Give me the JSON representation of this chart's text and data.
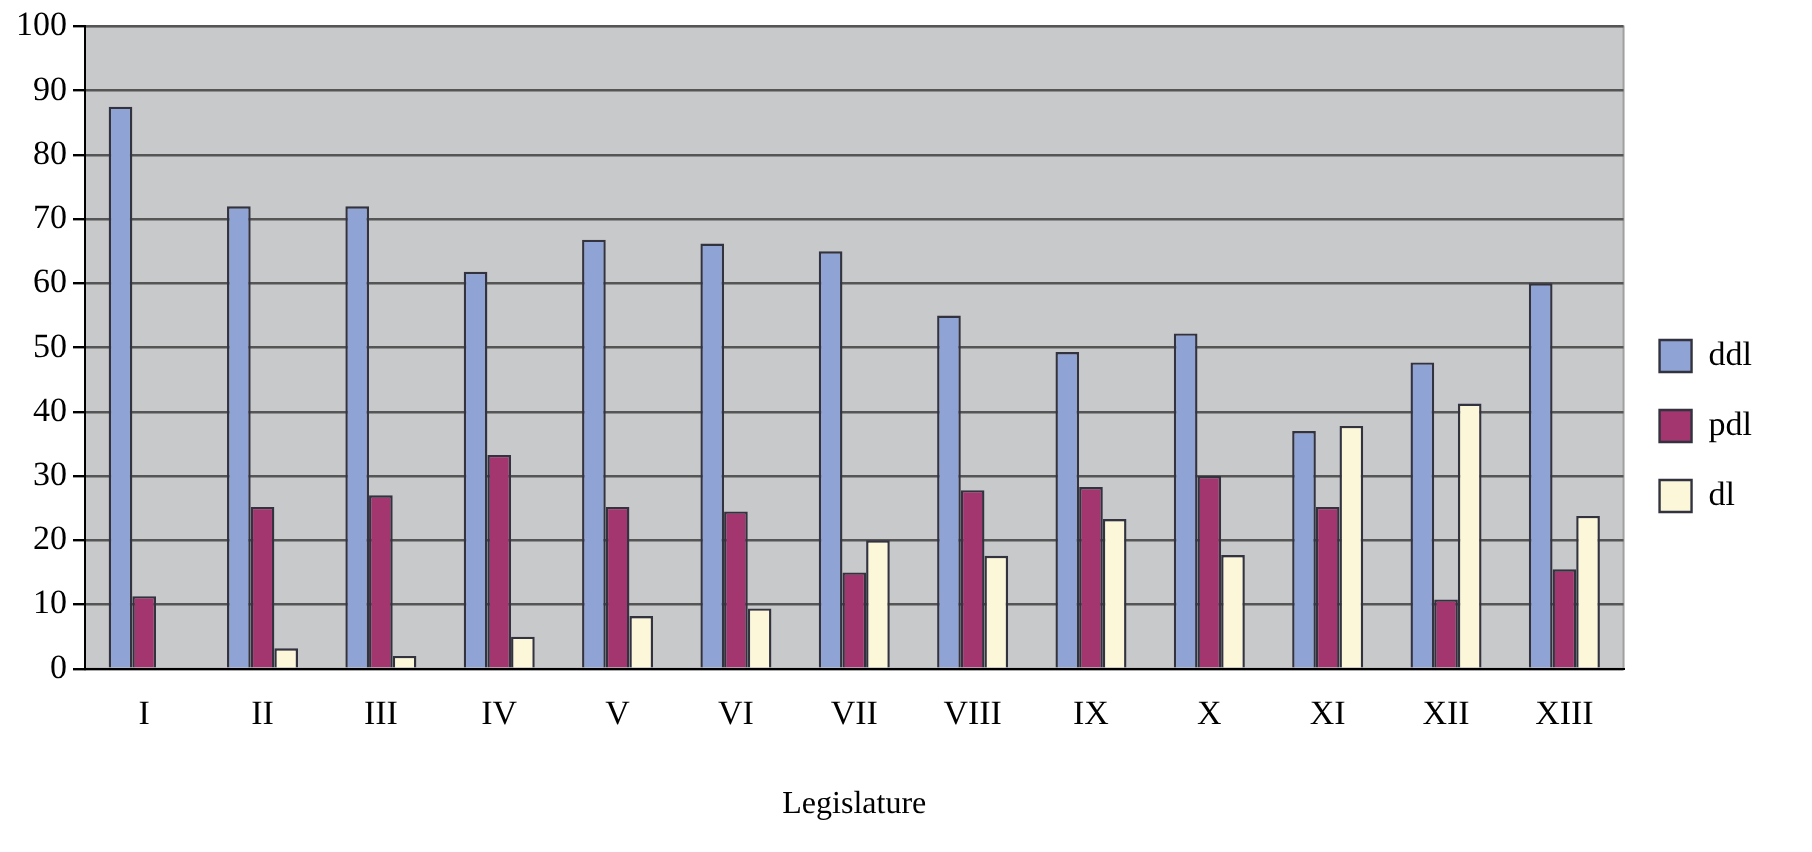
{
  "chart_data": {
    "type": "bar",
    "xlabel": "Legislature",
    "categories": [
      "I",
      "II",
      "III",
      "IV",
      "V",
      "VI",
      "VII",
      "VIII",
      "IX",
      "X",
      "XI",
      "XII",
      "XIII"
    ],
    "series": [
      {
        "name": "ddl",
        "color": "#8fa3d4",
        "values": [
          87.5,
          72,
          72,
          61.8,
          66.8,
          66.2,
          65,
          55,
          49.3,
          52.2,
          37,
          47.7,
          60
        ]
      },
      {
        "name": "pdl",
        "color": "#a3356f",
        "values": [
          11.3,
          25.2,
          27,
          33.3,
          25.2,
          24.5,
          15,
          27.8,
          28.3,
          30,
          25.2,
          10.8,
          15.5
        ]
      },
      {
        "name": "dl",
        "color": "#fbf7d8",
        "values": [
          0,
          3.2,
          2,
          5,
          8.2,
          9.4,
          20,
          17.6,
          23.3,
          17.7,
          37.8,
          41.3,
          23.8
        ]
      }
    ],
    "ylim": [
      0,
      100
    ],
    "yticks": [
      0,
      10,
      20,
      30,
      40,
      50,
      60,
      70,
      80,
      90,
      100
    ],
    "grid": "y",
    "legend": "right"
  }
}
